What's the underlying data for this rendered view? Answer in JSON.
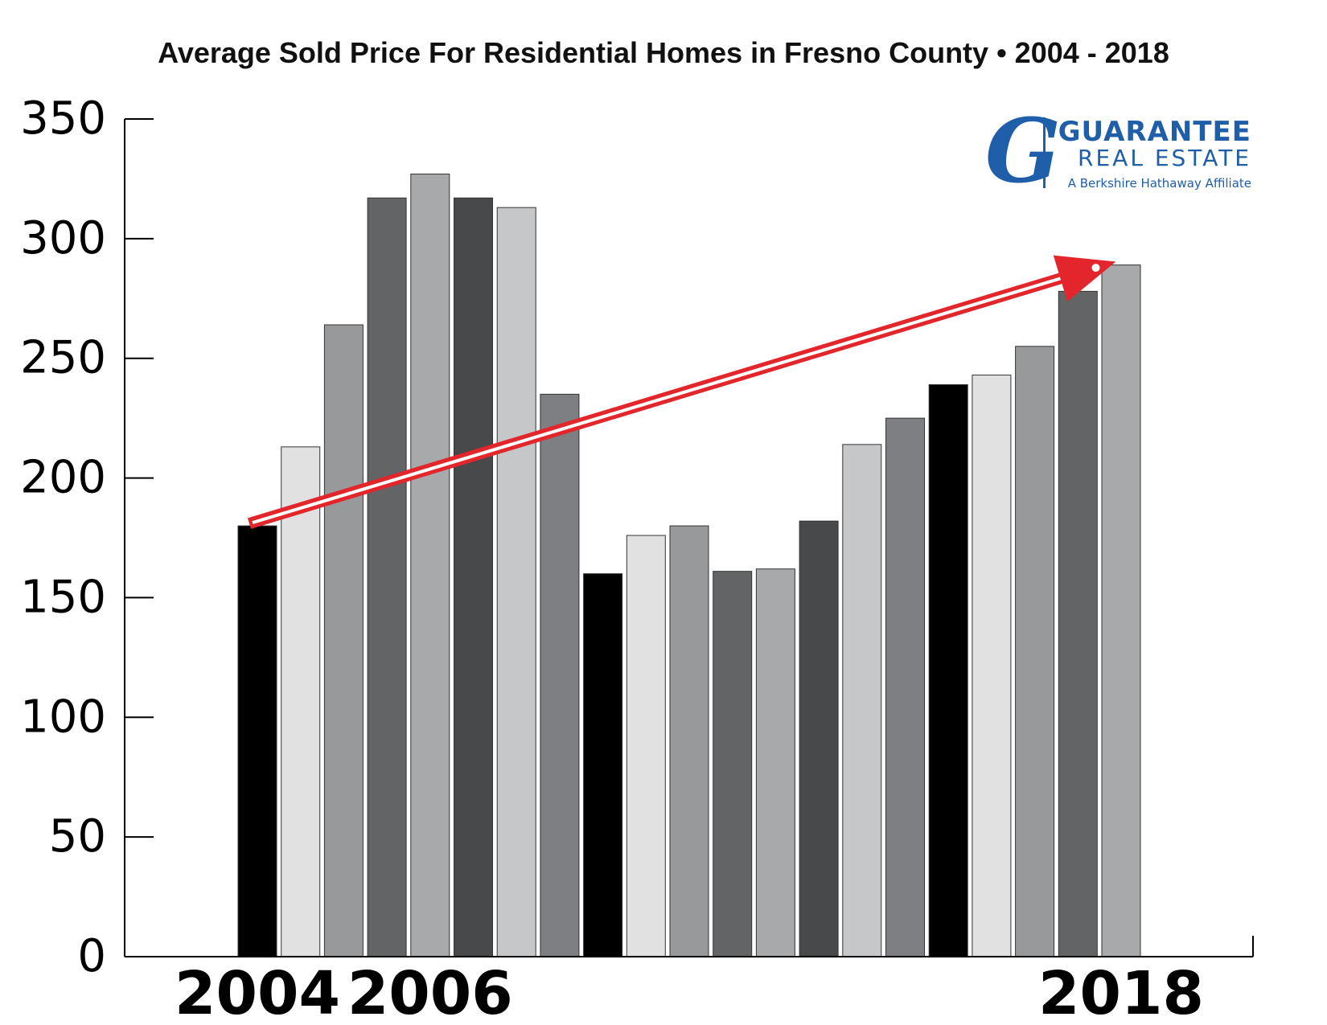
{
  "chart_data": {
    "type": "bar",
    "title": "Average Sold Price For Residential Homes in Fresno County  •  2004 - 2018",
    "y_ticks": [
      "0",
      "50",
      "100",
      "150",
      "200",
      "250",
      "300",
      "350"
    ],
    "ylim": [
      0,
      350
    ],
    "x_labels": [
      {
        "text": "2004",
        "at_bar": 0
      },
      {
        "text": "2006",
        "at_bar": 4
      },
      {
        "text": "2018",
        "at_bar": 20
      }
    ],
    "values": [
      180,
      213,
      264,
      317,
      327,
      317,
      313,
      235,
      160,
      176,
      180,
      161,
      162,
      182,
      214,
      225,
      239,
      243,
      255,
      278,
      289
    ],
    "bar_colors": [
      "#000000",
      "#e1e1e2",
      "#98999b",
      "#636466",
      "#a8a9ab",
      "#48494b",
      "#c6c7c8",
      "#7e7f82",
      "#000000",
      "#e1e1e2",
      "#98999b",
      "#636466",
      "#a8a9ab",
      "#48494b",
      "#c6c7c8",
      "#7e7f82",
      "#000000",
      "#e1e1e2",
      "#98999b",
      "#636466",
      "#a8a9ab"
    ],
    "trend_arrow": {
      "from_bar": 0,
      "from_value": 181,
      "to_bar": 20,
      "to_value": 289,
      "color": "#e2262b"
    },
    "grid": false,
    "legend": "none"
  },
  "logo": {
    "name": "GUARANTEE",
    "sub": "REAL ESTATE",
    "tagline": "A Berkshire Hathaway Affiliate",
    "mark": "G",
    "color": "#1f5ea8"
  }
}
